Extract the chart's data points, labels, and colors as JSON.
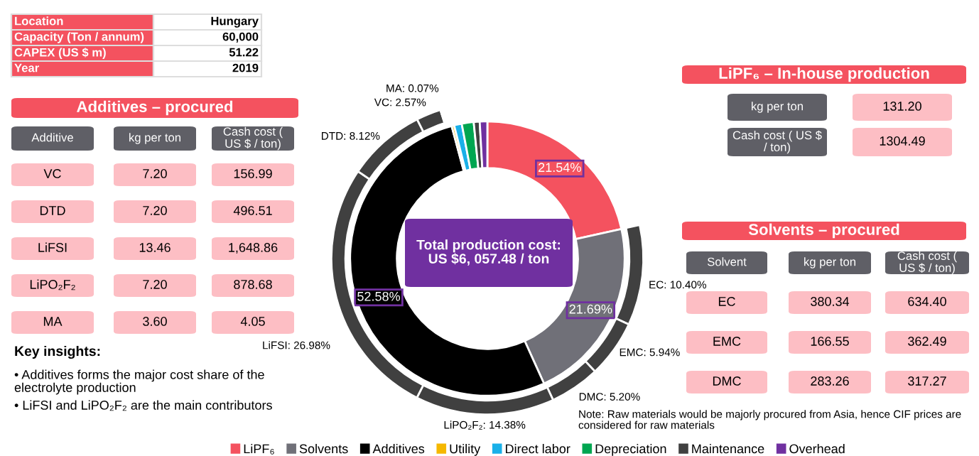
{
  "chart_data": {
    "type": "donut",
    "categories": [
      "LiPF₆",
      "Solvents",
      "Additives",
      "Utility",
      "Direct labor",
      "Depreciation",
      "Maintenance",
      "Overhead"
    ],
    "series": [
      {
        "values": [
          21.54,
          21.69,
          52.58,
          0.3,
          0.9,
          1.4,
          0.7,
          0.89
        ],
        "colors": [
          "#f4525f",
          "#707078",
          "#000000",
          "#f5b800",
          "#1ab0e8",
          "#00a651",
          "#404040",
          "#7030a0"
        ],
        "value_labels": [
          "21.54%",
          "21.69%",
          "52.58%",
          null,
          null,
          null,
          null,
          null
        ]
      },
      {
        "values": [
          10.4,
          5.94,
          5.2,
          14.38,
          26.98,
          8.12,
          2.57,
          0.07
        ],
        "color": "#404040",
        "value_labels": [
          "EC: 10.40%",
          "EMC: 5.94%",
          "DMC: 5.20%",
          "LiPO₂F₂: 14.38%",
          "LiFSI: 26.98%",
          "DTD: 8.12%",
          "VC: 2.57%",
          "MA: 0.07%"
        ]
      }
    ],
    "legend": "bottom",
    "annotations": [
      "Location",
      "Hungary",
      "Capacity (Ton / annum)",
      "60,000",
      "CAPEX (US $ m)",
      "51.22",
      "Year",
      "2019",
      "Additives – procured",
      "Additive",
      "kg per ton",
      "Cash cost (\nUS $ / ton)",
      "VC",
      "7.20",
      "156.99",
      "DTD",
      "7.20",
      "496.51",
      "LiFSI",
      "13.46",
      "1,648.86",
      "LiPO₂F₂",
      "7.20",
      "878.68",
      "MA",
      "3.60",
      "4.05",
      "Key insights:",
      "• Additives forms the major cost share of the\nelectrolyte production",
      "• LiFSI and LiPO₂F₂ are the main contributors",
      "LiPF₆ – In-house production",
      "kg per ton",
      "131.20",
      "Cash cost ( US $\n/ ton)",
      "1304.49",
      "Solvents – procured",
      "Solvent",
      "kg per ton",
      "Cash cost (\nUS $ / ton)",
      "EC",
      "380.34",
      "634.40",
      "EMC",
      "166.55",
      "362.49",
      "DMC",
      "283.26",
      "317.27",
      "Note: Raw materials would be majorly procured from Asia, hence CIF prices are\nconsidered for raw materials",
      "Total production cost:\nUS $6, 057.48 / ton"
    ]
  }
}
